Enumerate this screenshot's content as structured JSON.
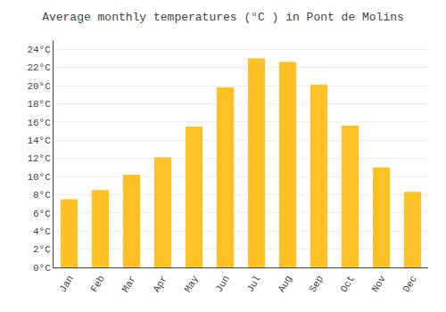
{
  "chart_data": {
    "type": "bar",
    "title": "Average monthly temperatures (°C ) in Pont de Molins",
    "categories": [
      "Jan",
      "Feb",
      "Mar",
      "Apr",
      "May",
      "Jun",
      "Jul",
      "Aug",
      "Sep",
      "Oct",
      "Nov",
      "Dec"
    ],
    "values": [
      7.5,
      8.5,
      10.2,
      12.1,
      15.5,
      19.8,
      23.0,
      22.6,
      20.1,
      15.6,
      11.0,
      8.3
    ],
    "color": "#FFC125",
    "ylim": [
      0,
      25
    ],
    "yticks": [
      {
        "value": 0,
        "label": "0°C"
      },
      {
        "value": 2,
        "label": "2°C"
      },
      {
        "value": 4,
        "label": "4°C"
      },
      {
        "value": 6,
        "label": "6°C"
      },
      {
        "value": 8,
        "label": "8°C"
      },
      {
        "value": 10,
        "label": "10°C"
      },
      {
        "value": 12,
        "label": "12°C"
      },
      {
        "value": 14,
        "label": "14°C"
      },
      {
        "value": 16,
        "label": "16°C"
      },
      {
        "value": 18,
        "label": "18°C"
      },
      {
        "value": 20,
        "label": "20°C"
      },
      {
        "value": 22,
        "label": "22°C"
      },
      {
        "value": 24,
        "label": "24°C"
      }
    ],
    "grid": true
  }
}
